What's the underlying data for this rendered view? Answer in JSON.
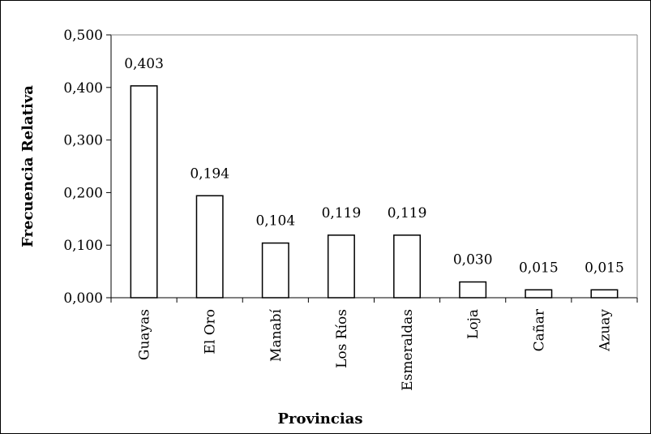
{
  "chart_data": {
    "type": "bar",
    "title": "",
    "xlabel": "Provincias",
    "ylabel": "Frecuencia Relativa",
    "categories": [
      "Guayas",
      "El Oro",
      "Manabí",
      "Los Ríos",
      "Esmeraldas",
      "Loja",
      "Cañar",
      "Azuay"
    ],
    "values": [
      0.403,
      0.194,
      0.104,
      0.119,
      0.119,
      0.03,
      0.015,
      0.015
    ],
    "value_labels": [
      "0,403",
      "0,194",
      "0,104",
      "0,119",
      "0,119",
      "0,030",
      "0,015",
      "0,015"
    ],
    "ylim": [
      0,
      0.5
    ],
    "yticks": [
      0,
      0.1,
      0.2,
      0.3,
      0.4,
      0.5
    ],
    "ytick_labels": [
      "0,000",
      "0,100",
      "0,200",
      "0,300",
      "0,400",
      "0,500"
    ],
    "grid": false,
    "legend": "none",
    "bar_fill": "#ffffff",
    "bar_stroke": "#000000"
  }
}
